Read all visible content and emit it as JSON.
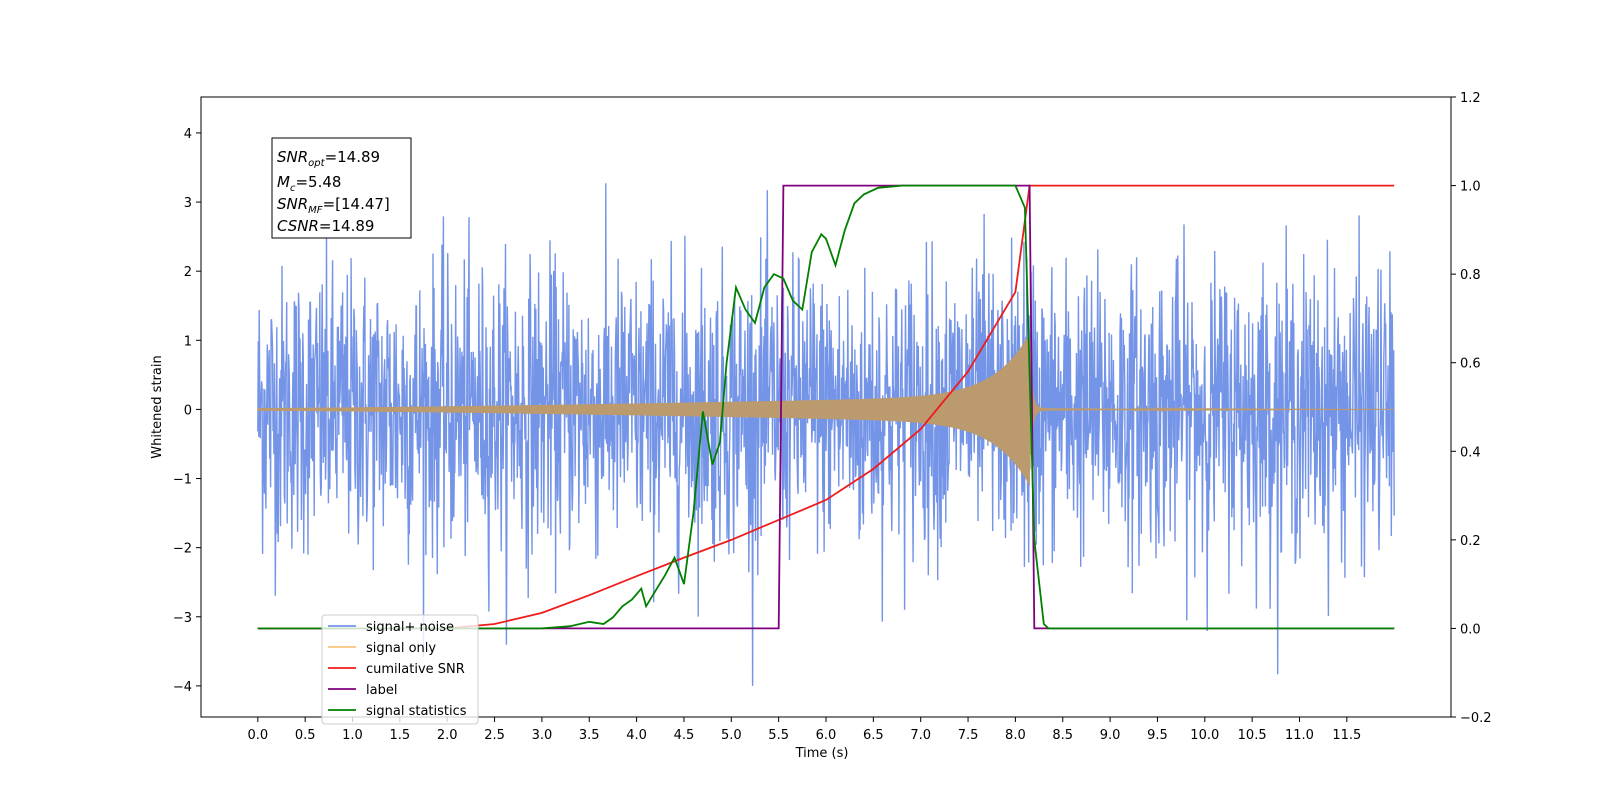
{
  "chart_data": {
    "type": "line",
    "xlabel": "Time (s)",
    "ylabel_left": "Whitened strain",
    "ylabel_right": "",
    "xlim": [
      -0.6,
      12.6
    ],
    "ylim_left": [
      -4.45,
      4.52
    ],
    "ylim_right": [
      -0.2,
      1.2
    ],
    "x_ticks": [
      "0.0",
      "0.5",
      "1.0",
      "1.5",
      "2.0",
      "2.5",
      "3.0",
      "3.5",
      "4.0",
      "4.5",
      "5.0",
      "5.5",
      "6.0",
      "6.5",
      "7.0",
      "7.5",
      "8.0",
      "8.5",
      "9.0",
      "9.5",
      "10.0",
      "10.5",
      "11.0",
      "11.5"
    ],
    "y_ticks_left": [
      "4",
      "3",
      "2",
      "1",
      "0",
      "−1",
      "−2",
      "−3",
      "−4"
    ],
    "y_ticks_right": [
      "1.2",
      "1.0",
      "0.8",
      "0.6",
      "0.4",
      "0.2",
      "0.0",
      "−0.2"
    ],
    "grid": false,
    "legend_placement": "lower-left",
    "series": [
      {
        "name": "signal+ noise",
        "color": "#7494e8",
        "axis": "left",
        "description_values": {
          "x_range": [
            0.0,
            12.0
          ],
          "amplitude_typical": 2.6,
          "extremes": [
            4.1,
            -4.0
          ]
        }
      },
      {
        "name": "signal only",
        "color": "#f8c47c",
        "axis": "left",
        "chirp": {
          "start": 0.0,
          "merger": 8.15,
          "end": 12.0,
          "peak_amplitude": 1.1
        }
      },
      {
        "name": "cumilative SNR",
        "color": "#ee1c1c",
        "axis": "right",
        "x": [
          0.0,
          2.0,
          2.5,
          3.0,
          3.5,
          4.0,
          4.5,
          5.0,
          5.5,
          6.0,
          6.5,
          7.0,
          7.5,
          8.0,
          8.15,
          8.2,
          12.0
        ],
        "y": [
          0.0,
          0.0,
          0.01,
          0.035,
          0.075,
          0.118,
          0.16,
          0.2,
          0.245,
          0.29,
          0.36,
          0.45,
          0.58,
          0.76,
          1.0,
          1.0,
          1.0
        ]
      },
      {
        "name": "label",
        "color": "#800080",
        "axis": "right",
        "x": [
          0.0,
          5.5,
          5.55,
          8.15,
          8.2,
          12.0
        ],
        "y": [
          0.0,
          0.0,
          1.0,
          1.0,
          0.0,
          0.0
        ]
      },
      {
        "name": "signal statistics",
        "color": "#008000",
        "axis": "right",
        "x": [
          0.0,
          3.0,
          3.3,
          3.5,
          3.65,
          3.75,
          3.85,
          3.95,
          4.05,
          4.1,
          4.2,
          4.3,
          4.4,
          4.5,
          4.6,
          4.7,
          4.8,
          4.88,
          4.95,
          5.05,
          5.15,
          5.25,
          5.35,
          5.45,
          5.55,
          5.65,
          5.75,
          5.85,
          5.95,
          6.0,
          6.1,
          6.2,
          6.3,
          6.4,
          6.55,
          6.8,
          7.0,
          7.5,
          8.0,
          8.1,
          8.2,
          8.3,
          8.35,
          12.0
        ],
        "y": [
          0.0,
          0.0,
          0.005,
          0.015,
          0.01,
          0.025,
          0.05,
          0.065,
          0.09,
          0.05,
          0.085,
          0.12,
          0.16,
          0.1,
          0.26,
          0.49,
          0.37,
          0.42,
          0.6,
          0.77,
          0.72,
          0.69,
          0.77,
          0.8,
          0.79,
          0.74,
          0.72,
          0.85,
          0.89,
          0.88,
          0.82,
          0.9,
          0.96,
          0.98,
          0.995,
          1.0,
          1.0,
          1.0,
          1.0,
          0.95,
          0.2,
          0.01,
          0.0,
          0.0
        ]
      }
    ],
    "info_box": {
      "snr_opt_value": "=14.89",
      "mc_value": "=5.48",
      "snr_mf_value": "=[14.47]",
      "csnr_value": "=14.89"
    }
  }
}
